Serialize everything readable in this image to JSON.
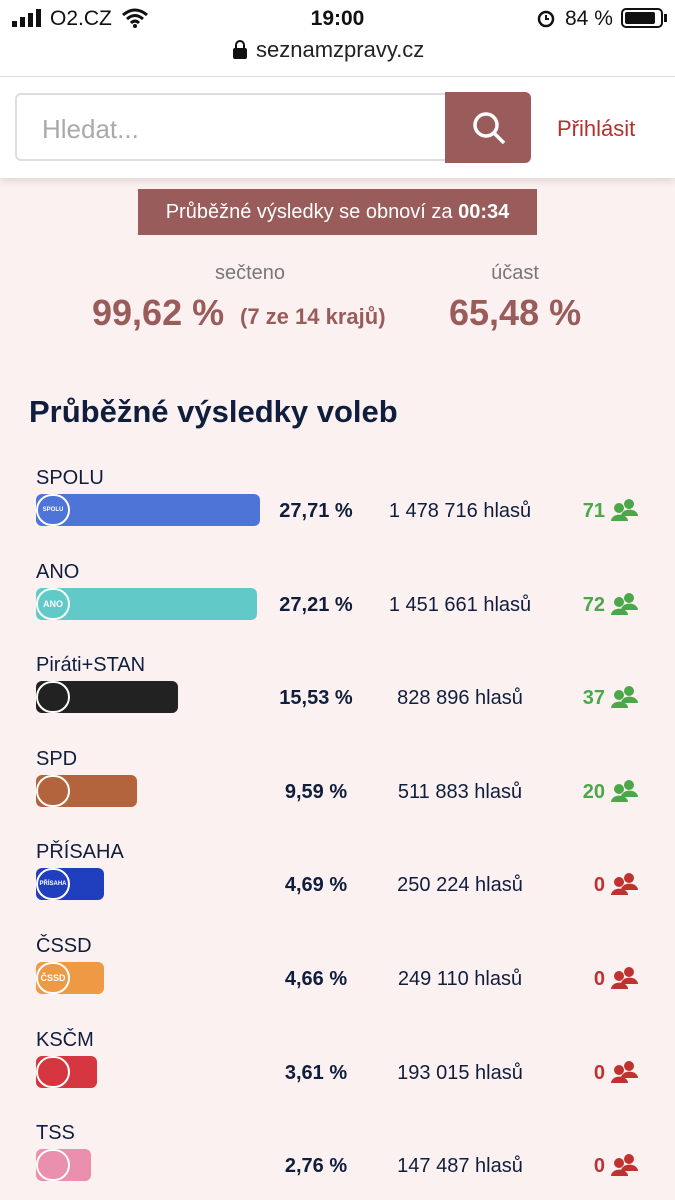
{
  "status_bar": {
    "carrier": "O2.CZ",
    "time": "19:00",
    "battery": "84 %",
    "url": "seznamzpravy.cz"
  },
  "header": {
    "search_placeholder": "Hledat...",
    "login": "Přihlásit"
  },
  "banner": {
    "text": "Průběžné výsledky se obnoví za",
    "countdown": "00:34"
  },
  "stats": {
    "counted_label": "sečteno",
    "counted_value": "99,62 %",
    "counted_note": "(7 ze 14 krajů)",
    "turnout_label": "účast",
    "turnout_value": "65,48 %"
  },
  "heading": "Průběžné výsledky voleb",
  "parties": [
    {
      "name": "SPOLU",
      "logo_text": "SPOLU",
      "color": "#4e74d8",
      "value": 27.71,
      "value_label": "27,71 %",
      "votes": "1 478 716 hlasů",
      "seats": 71
    },
    {
      "name": "ANO",
      "logo_text": "ANO",
      "color": "#62c9c9",
      "value": 27.21,
      "value_label": "27,21 %",
      "votes": "1 451 661 hlasů",
      "seats": 72
    },
    {
      "name": "Piráti+STAN",
      "color": "#222222",
      "value": 15.53,
      "value_label": "15,53 %",
      "votes": "828 896 hlasů",
      "seats": 37
    },
    {
      "name": "SPD",
      "color": "#b4643c",
      "value": 9.59,
      "value_label": "9,59 %",
      "votes": "511 883 hlasů",
      "seats": 20
    },
    {
      "name": "PŘÍSAHA",
      "logo_text": "PŘÍSAHA",
      "color": "#1f3fbf",
      "value": 4.69,
      "value_label": "4,69 %",
      "votes": "250 224 hlasů",
      "seats": 0
    },
    {
      "name": "ČSSD",
      "logo_text": "ČSSD",
      "color": "#ee9a45",
      "value": 4.66,
      "value_label": "4,66 %",
      "votes": "249 110 hlasů",
      "seats": 0
    },
    {
      "name": "KSČM",
      "color": "#d6363f",
      "value": 3.61,
      "value_label": "3,61 %",
      "votes": "193 015 hlasů",
      "seats": 0
    },
    {
      "name": "TSS",
      "color": "#ea8fae",
      "value": 2.76,
      "value_label": "2,76 %",
      "votes": "147 487 hlasů",
      "seats": 0
    }
  ]
}
